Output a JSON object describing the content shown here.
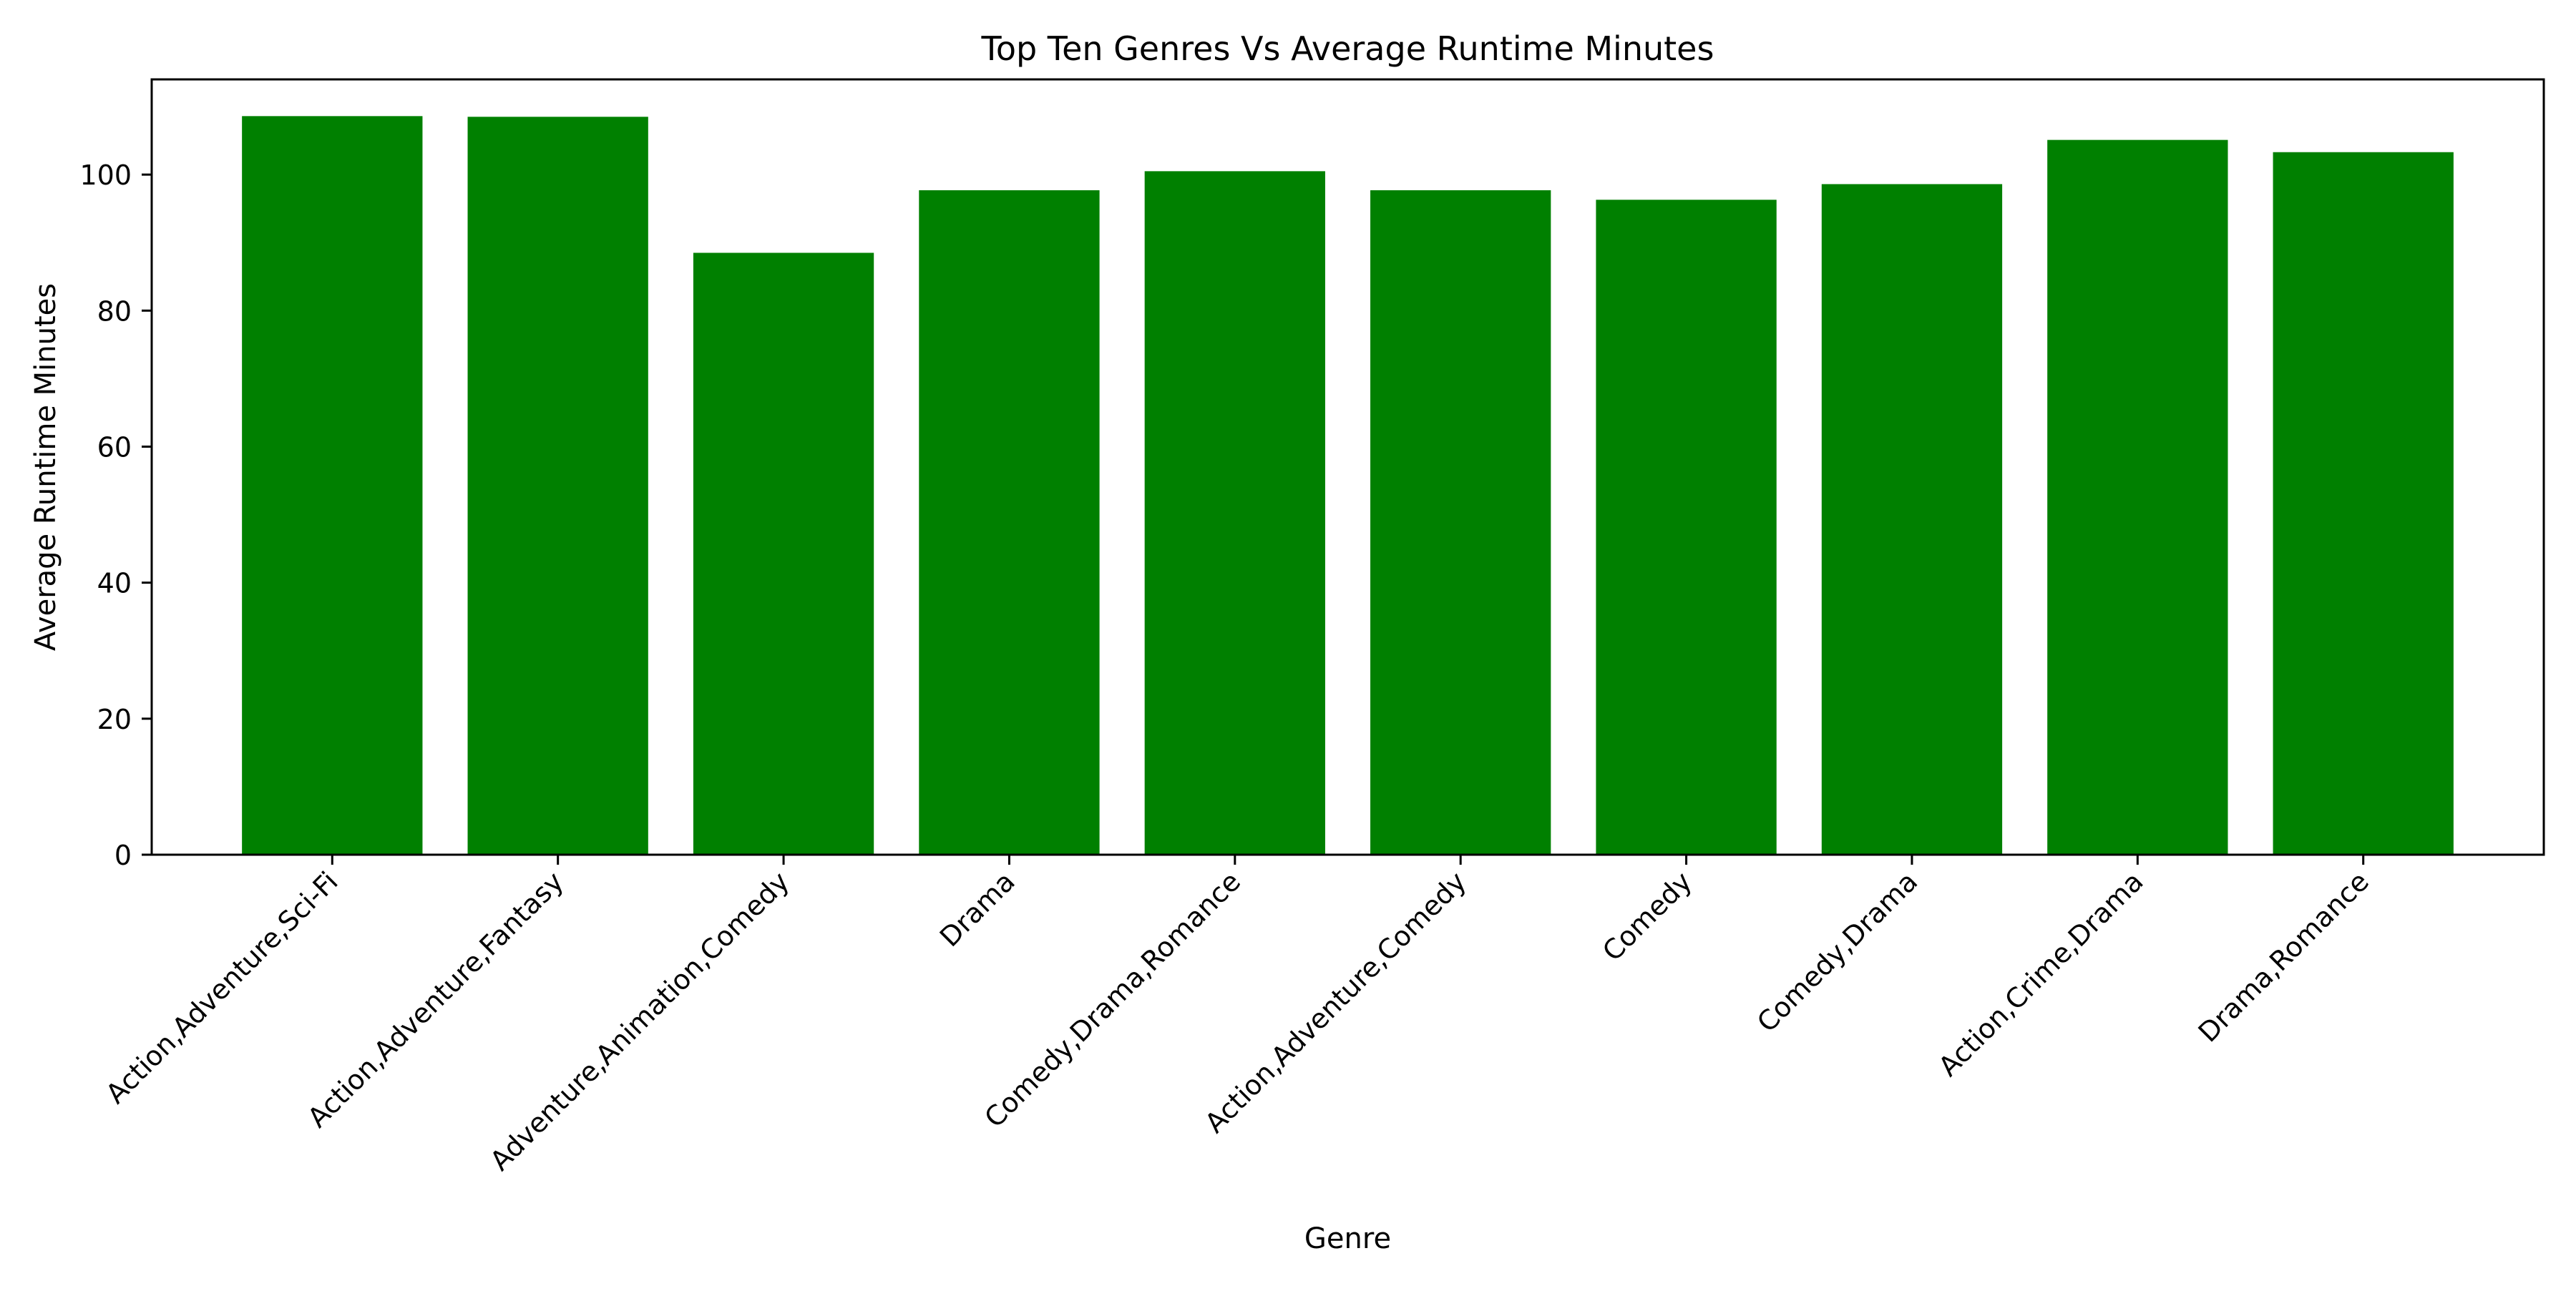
{
  "chart_data": {
    "type": "bar",
    "title": "Top Ten Genres Vs Average Runtime Minutes",
    "xlabel": "Genre",
    "ylabel": "Average Runtime Minutes",
    "categories": [
      "Action,Adventure,Sci-Fi",
      "Action,Adventure,Fantasy",
      "Adventure,Animation,Comedy",
      "Drama",
      "Comedy,Drama,Romance",
      "Action,Adventure,Comedy",
      "Comedy",
      "Comedy,Drama",
      "Action,Crime,Drama",
      "Drama,Romance"
    ],
    "values": [
      108.6,
      108.5,
      88.5,
      97.7,
      100.5,
      97.7,
      96.3,
      98.6,
      105.1,
      103.3
    ],
    "ylim": [
      0,
      114
    ],
    "yticks": [
      0,
      20,
      40,
      60,
      80,
      100
    ],
    "grid": false,
    "bar_color": "#008000"
  }
}
